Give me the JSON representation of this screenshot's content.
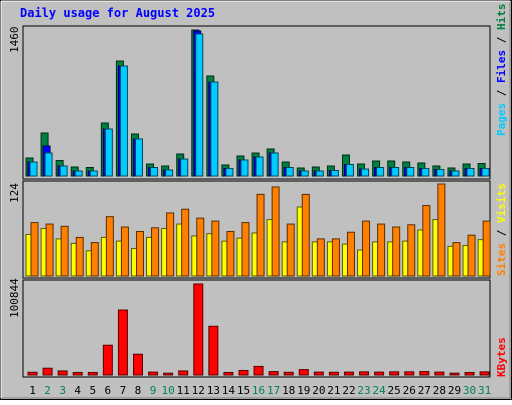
{
  "chart_data": {
    "type": "bar",
    "title": "Daily usage for August 2025",
    "days": [
      "1",
      "2",
      "3",
      "4",
      "5",
      "6",
      "7",
      "8",
      "9",
      "10",
      "11",
      "12",
      "13",
      "14",
      "15",
      "16",
      "17",
      "18",
      "19",
      "20",
      "21",
      "22",
      "23",
      "24",
      "25",
      "26",
      "27",
      "28",
      "29",
      "30",
      "31"
    ],
    "weekend_days": [
      "2",
      "3",
      "9",
      "10",
      "16",
      "17",
      "23",
      "24",
      "30",
      "31"
    ],
    "panels": [
      {
        "id": "hits",
        "ymax": 1460,
        "ymax_label": "1460",
        "legend": [
          "Pages",
          "Files",
          "Hits"
        ],
        "legend_colors": [
          "#00ccff",
          "#0000ff",
          "#008040"
        ],
        "series": [
          {
            "name": "Hits",
            "color": "#008040",
            "values": [
              180,
              430,
              155,
              90,
              85,
              530,
              1150,
              420,
              120,
              100,
              220,
              1460,
              1000,
              110,
              200,
              230,
              270,
              140,
              80,
              90,
              100,
              210,
              120,
              150,
              150,
              140,
              130,
              100,
              80,
              120,
              125
            ]
          },
          {
            "name": "Files",
            "color": "#0000ff",
            "values": [
              140,
              300,
              100,
              50,
              50,
              470,
              1100,
              370,
              85,
              60,
              170,
              1450,
              940,
              75,
              160,
              190,
              230,
              85,
              50,
              50,
              55,
              115,
              70,
              85,
              85,
              85,
              75,
              65,
              50,
              75,
              75
            ]
          },
          {
            "name": "Pages",
            "color": "#00ccff",
            "values": [
              140,
              230,
              100,
              50,
              50,
              470,
              1100,
              370,
              85,
              60,
              170,
              1420,
              940,
              75,
              160,
              190,
              230,
              85,
              50,
              50,
              55,
              115,
              70,
              85,
              85,
              85,
              75,
              65,
              50,
              75,
              75
            ]
          }
        ]
      },
      {
        "id": "visits",
        "ymax": 124,
        "ymax_label": "124",
        "legend": [
          "Sites",
          "Visits"
        ],
        "legend_colors": [
          "#ff8000",
          "#ffff00"
        ],
        "series": [
          {
            "name": "Visits",
            "color": "#ffff00",
            "values": [
              56,
              64,
              50,
              44,
              34,
              52,
              47,
              37,
              52,
              64,
              70,
              54,
              57,
              47,
              51,
              58,
              76,
              46,
              93,
              46,
              46,
              43,
              35,
              46,
              46,
              47,
              62,
              76,
              40,
              41,
              49
            ]
          },
          {
            "name": "Sites",
            "color": "#ff8000",
            "values": [
              72,
              70,
              67,
              52,
              45,
              80,
              66,
              60,
              65,
              85,
              90,
              78,
              74,
              60,
              72,
              110,
              120,
              70,
              110,
              50,
              50,
              59,
              74,
              70,
              66,
              69,
              95,
              124,
              45,
              55,
              74
            ]
          }
        ]
      },
      {
        "id": "kbytes",
        "ymax": 100844,
        "ymax_label": "100844",
        "legend": [
          "KBytes"
        ],
        "legend_colors": [
          "#ff0000"
        ],
        "series": [
          {
            "name": "KBytes",
            "color": "#ff0000",
            "values": [
              3000,
              7500,
              4500,
              2800,
              2800,
              33000,
              72000,
              23000,
              3200,
              2000,
              4500,
              100844,
              54000,
              2800,
              5000,
              9500,
              3800,
              3000,
              6000,
              3200,
              3000,
              3200,
              3500,
              3200,
              3500,
              3500,
              3800,
              3200,
              2000,
              2800,
              3500
            ]
          }
        ]
      }
    ]
  }
}
